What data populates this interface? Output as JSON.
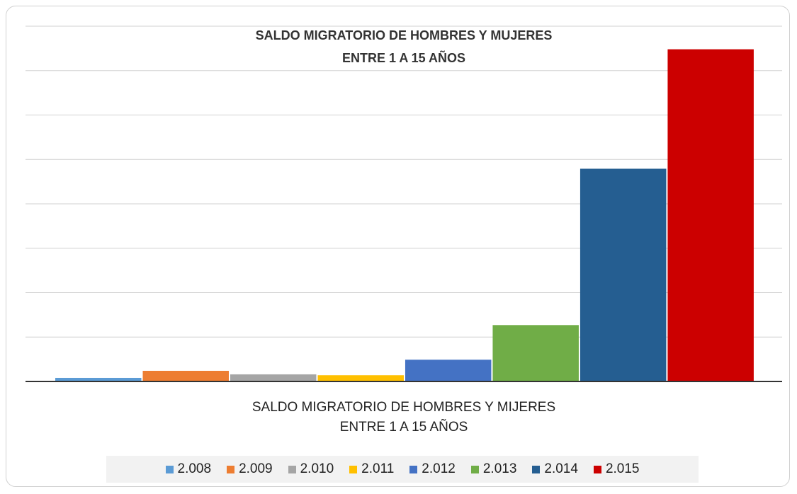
{
  "chart_data": {
    "type": "bar",
    "title": "SALDO MIGRATORIO DE HOMBRES Y MUJERES ENTRE 1 A 15 AÑOS",
    "categories": [
      "SALDO MIGRATORIO DE HOMBRES Y MIJERES ENTRE 1 A 15 AÑOS"
    ],
    "series": [
      {
        "name": "2.008",
        "color": "#5b9bd5",
        "values": [
          0.08
        ]
      },
      {
        "name": "2.009",
        "color": "#ed7d31",
        "values": [
          0.24
        ]
      },
      {
        "name": "2.010",
        "color": "#a5a5a5",
        "values": [
          0.16
        ]
      },
      {
        "name": "2.011",
        "color": "#ffc000",
        "values": [
          0.14
        ]
      },
      {
        "name": "2.012",
        "color": "#4472c4",
        "values": [
          0.49
        ]
      },
      {
        "name": "2.013",
        "color": "#70ad47",
        "values": [
          1.27
        ]
      },
      {
        "name": "2.014",
        "color": "#255e91",
        "values": [
          4.79
        ]
      },
      {
        "name": "2.015",
        "color": "#cc0000",
        "values": [
          7.48
        ]
      }
    ],
    "ylim": [
      0,
      8
    ],
    "yticks": [
      0,
      1,
      2,
      3,
      4,
      5,
      6,
      7,
      8
    ],
    "grid": true,
    "legend": "bottom"
  }
}
